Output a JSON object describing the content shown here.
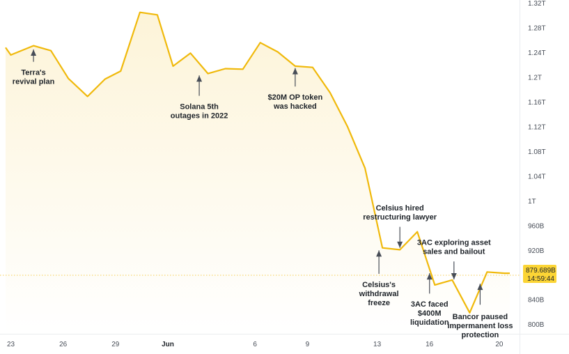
{
  "chart_data": {
    "type": "area",
    "title": "",
    "xlabel": "",
    "ylabel": "",
    "x_ticks": [
      {
        "label": "23",
        "x": 23,
        "bold": false
      },
      {
        "label": "26",
        "x": 26,
        "bold": false
      },
      {
        "label": "29",
        "x": 29,
        "bold": false
      },
      {
        "label": "Jun",
        "x": 32,
        "bold": true
      },
      {
        "label": "6",
        "x": 37,
        "bold": false
      },
      {
        "label": "9",
        "x": 40,
        "bold": false
      },
      {
        "label": "13",
        "x": 44,
        "bold": false
      },
      {
        "label": "16",
        "x": 47,
        "bold": false
      },
      {
        "label": "20",
        "x": 51,
        "bold": false
      }
    ],
    "y_ticks": [
      "800B",
      "840B",
      "880B",
      "920B",
      "960B",
      "1T",
      "1.04T",
      "1.08T",
      "1.12T",
      "1.16T",
      "1.2T",
      "1.24T",
      "1.28T",
      "1.32T"
    ],
    "y_tick_values": [
      800,
      840,
      880,
      920,
      960,
      1000,
      1040,
      1080,
      1120,
      1160,
      1200,
      1240,
      1280,
      1320
    ],
    "y_unit": "B",
    "ylim": [
      785,
      1325
    ],
    "xlim": [
      22.7,
      52
    ],
    "series": [
      {
        "color": "#f0b90b",
        "points": [
          [
            22.7,
            1248
          ],
          [
            23,
            1236
          ],
          [
            24.3,
            1251
          ],
          [
            25.3,
            1243
          ],
          [
            26.3,
            1198
          ],
          [
            27.4,
            1169
          ],
          [
            28.4,
            1197
          ],
          [
            29.3,
            1210
          ],
          [
            30.4,
            1305
          ],
          [
            31.4,
            1301
          ],
          [
            32.3,
            1218
          ],
          [
            33.3,
            1239
          ],
          [
            34.3,
            1206
          ],
          [
            35.3,
            1214
          ],
          [
            36.3,
            1213
          ],
          [
            37.3,
            1256
          ],
          [
            38.3,
            1241
          ],
          [
            39.3,
            1218
          ],
          [
            40.3,
            1216
          ],
          [
            41.3,
            1175
          ],
          [
            42.3,
            1120
          ],
          [
            43.3,
            1053
          ],
          [
            44.3,
            924
          ],
          [
            45.3,
            921
          ],
          [
            46.3,
            950
          ],
          [
            47.3,
            864
          ],
          [
            48.3,
            872
          ],
          [
            49.3,
            819
          ],
          [
            50.3,
            885
          ],
          [
            51.3,
            883
          ],
          [
            51.6,
            883
          ]
        ]
      }
    ],
    "current_value": {
      "label": "879.689B",
      "timer": "14:59:44",
      "value": 879.689
    },
    "annotations": [
      {
        "lines": [
          "Terra's",
          "revival plan"
        ],
        "x": 24.3,
        "arrow": "up",
        "y_tip": 1245,
        "y_tail": 1225,
        "text_y": 1215
      },
      {
        "lines": [
          "Solana 5th",
          "outages in 2022"
        ],
        "x": 33.8,
        "arrow": "up",
        "y_tip": 1203,
        "y_tail": 1170,
        "text_y": 1160
      },
      {
        "lines": [
          "$20M OP token",
          "was hacked"
        ],
        "x": 39.3,
        "arrow": "up",
        "y_tip": 1215,
        "y_tail": 1185,
        "text_y": 1175
      },
      {
        "lines": [
          "Celsius's",
          "withdrawal",
          "freeze"
        ],
        "x": 44.1,
        "arrow": "up",
        "y_tip": 920,
        "y_tail": 882,
        "text_y": 872
      },
      {
        "lines": [
          "Celsius hired",
          "restructuring lawyer"
        ],
        "x": 45.3,
        "arrow": "down",
        "y_tip": 924,
        "y_tail": 958,
        "text_y": 970
      },
      {
        "lines": [
          "3AC faced",
          "$400M",
          "liquidation"
        ],
        "x": 47.0,
        "arrow": "up",
        "y_tip": 883,
        "y_tail": 850,
        "text_y": 840
      },
      {
        "lines": [
          "3AC exploring asset",
          "sales and bailout"
        ],
        "x": 48.4,
        "arrow": "down",
        "y_tip": 873,
        "y_tail": 902,
        "text_y": 914
      },
      {
        "lines": [
          "Bancor paused",
          "impermanent loss",
          "protection"
        ],
        "x": 49.9,
        "arrow": "up",
        "y_tip": 866,
        "y_tail": 832,
        "text_y": 820
      }
    ],
    "grid": false,
    "legend": "none"
  }
}
